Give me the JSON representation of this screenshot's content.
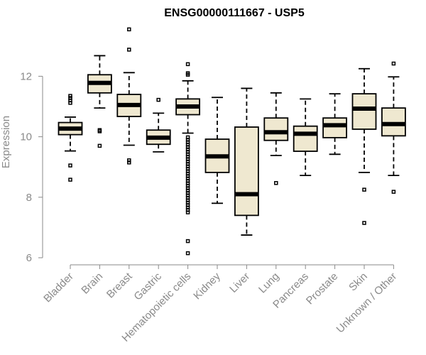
{
  "chart_data": {
    "type": "boxplot",
    "title": "ENSG00000111667 - USP5",
    "ylabel": "Expression",
    "xlabel": "",
    "ylim": [
      6,
      13.6
    ],
    "yticks": [
      6,
      8,
      10,
      12
    ],
    "colors": {
      "box_fill": "#efe8d0",
      "axis": "#8a8a8a",
      "stroke": "#000000"
    },
    "categories": [
      "Bladder",
      "Brain",
      "Breast",
      "Gastric",
      "Hematopoietic cells",
      "Kidney",
      "Liver",
      "Lung",
      "Pancreas",
      "Prostate",
      "Skin",
      "Unknown / Other"
    ],
    "boxes": [
      {
        "name": "Bladder",
        "whislo": 9.53,
        "q1": 10.07,
        "med": 10.27,
        "q3": 10.47,
        "whishi": 10.65,
        "fliers": [
          11.35,
          11.28,
          11.2,
          11.12,
          9.05,
          8.58
        ]
      },
      {
        "name": "Brain",
        "whislo": 10.95,
        "q1": 11.45,
        "med": 11.78,
        "q3": 12.05,
        "whishi": 12.68,
        "fliers": [
          10.22,
          10.18,
          9.7
        ]
      },
      {
        "name": "Breast",
        "whislo": 9.72,
        "q1": 10.67,
        "med": 11.05,
        "q3": 11.4,
        "whishi": 12.12,
        "fliers": [
          13.55,
          12.88,
          9.22,
          9.15
        ]
      },
      {
        "name": "Gastric",
        "whislo": 9.5,
        "q1": 9.75,
        "med": 9.97,
        "q3": 10.22,
        "whishi": 10.78,
        "fliers": [
          11.22
        ]
      },
      {
        "name": "Hematopoietic cells",
        "whislo": 10.12,
        "q1": 10.73,
        "med": 11.0,
        "q3": 11.25,
        "whishi": 11.85,
        "fliers": [
          12.4,
          12.1,
          12.05,
          9.98,
          9.9,
          9.82,
          9.74,
          9.66,
          9.58,
          9.5,
          9.42,
          9.34,
          9.26,
          9.18,
          9.1,
          9.02,
          8.94,
          8.86,
          8.78,
          8.7,
          8.62,
          8.54,
          8.46,
          8.38,
          8.3,
          8.22,
          8.14,
          8.06,
          7.98,
          7.9,
          7.82,
          7.74,
          7.66,
          7.58,
          7.5,
          6.55,
          6.15
        ]
      },
      {
        "name": "Kidney",
        "whislo": 7.8,
        "q1": 8.82,
        "med": 9.35,
        "q3": 9.92,
        "whishi": 11.3,
        "fliers": []
      },
      {
        "name": "Liver",
        "whislo": 6.75,
        "q1": 7.4,
        "med": 8.1,
        "q3": 10.32,
        "whishi": 11.6,
        "fliers": []
      },
      {
        "name": "Lung",
        "whislo": 9.38,
        "q1": 9.88,
        "med": 10.15,
        "q3": 10.62,
        "whishi": 11.45,
        "fliers": [
          8.47
        ]
      },
      {
        "name": "Pancreas",
        "whislo": 8.72,
        "q1": 9.52,
        "med": 10.1,
        "q3": 10.35,
        "whishi": 11.25,
        "fliers": []
      },
      {
        "name": "Prostate",
        "whislo": 9.42,
        "q1": 9.97,
        "med": 10.38,
        "q3": 10.62,
        "whishi": 11.42,
        "fliers": []
      },
      {
        "name": "Skin",
        "whislo": 8.82,
        "q1": 10.25,
        "med": 10.93,
        "q3": 11.42,
        "whishi": 12.25,
        "fliers": [
          8.25,
          7.15
        ]
      },
      {
        "name": "Unknown / Other",
        "whislo": 8.72,
        "q1": 10.03,
        "med": 10.42,
        "q3": 10.95,
        "whishi": 11.98,
        "fliers": [
          12.42,
          8.18
        ]
      }
    ]
  }
}
